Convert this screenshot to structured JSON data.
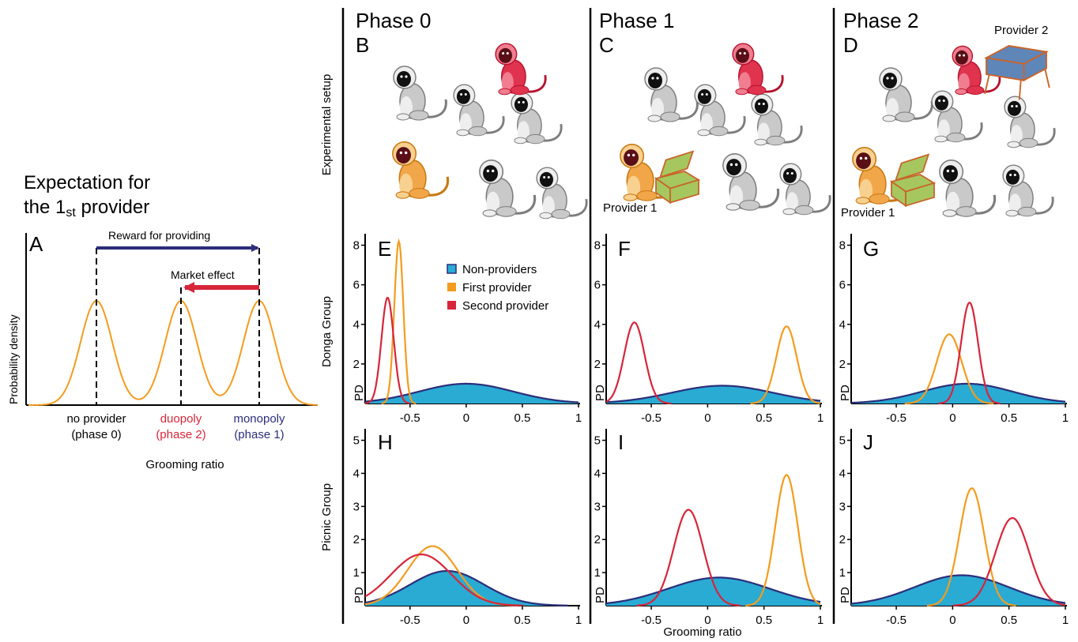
{
  "colors": {
    "nonprovider_fill": "#29abd4",
    "nonprovider_line": "#2b2e7a",
    "first_provider": "#f39c1f",
    "second_provider": "#d6263a",
    "reward_arrow": "#2b2e7a",
    "market_arrow": "#d6263a"
  },
  "panel_a": {
    "title_line1": "Expectation for",
    "title_line2_prefix": "the 1",
    "title_line2_sub": "st",
    "title_line2_suffix": " provider",
    "letter": "A",
    "ylabel": "Probability density",
    "xlabel": "Grooming ratio",
    "reward_label": "Reward for providing",
    "market_label": "Market effect",
    "categories": [
      {
        "name": "no provider",
        "phase": "(phase 0)",
        "color": "#000000"
      },
      {
        "name": "duopoly",
        "phase": "(phase 2)",
        "color": "#d6263a"
      },
      {
        "name": "monopoly",
        "phase": "(phase 1)",
        "color": "#2b2e7a"
      }
    ]
  },
  "phases": [
    {
      "title": "Phase 0",
      "letter": "B",
      "provider1_label": "",
      "provider2_label": ""
    },
    {
      "title": "Phase 1",
      "letter": "C",
      "provider1_label": "Provider 1",
      "provider2_label": ""
    },
    {
      "title": "Phase 2",
      "letter": "D",
      "provider1_label": "Provider 1",
      "provider2_label": "Provider 2"
    }
  ],
  "row_labels": {
    "setup": "Experimental setup",
    "donga": "Donga Group",
    "picnic": "Picnic Group"
  },
  "legend": {
    "nonproviders": "Non-providers",
    "first": "First provider",
    "second": "Second provider"
  },
  "shared_xlabel": "Grooming ratio",
  "pd_label": "PD",
  "chart_data": [
    {
      "type": "area",
      "panel": "E",
      "group": "Donga Group",
      "phase": "Phase 0",
      "xlim": [
        -0.9,
        1
      ],
      "ylim": [
        0,
        8.5
      ],
      "yticks": [
        2,
        4,
        6,
        8
      ],
      "xticks": [
        -0.5,
        0,
        0.5,
        1
      ],
      "series": [
        {
          "name": "Non-providers",
          "mean": 0.0,
          "sd": 0.42,
          "peak": 1.0
        },
        {
          "name": "First provider",
          "mean": -0.6,
          "sd": 0.04,
          "peak": 8.2
        },
        {
          "name": "Second provider",
          "mean": -0.7,
          "sd": 0.055,
          "peak": 5.35
        }
      ]
    },
    {
      "type": "area",
      "panel": "F",
      "group": "Donga Group",
      "phase": "Phase 1",
      "xlim": [
        -0.9,
        1
      ],
      "ylim": [
        0,
        8.5
      ],
      "yticks": [
        2,
        4,
        6,
        8
      ],
      "xticks": [
        -0.5,
        0,
        0.5,
        1
      ],
      "series": [
        {
          "name": "Non-providers",
          "mean": 0.13,
          "sd": 0.45,
          "peak": 0.9
        },
        {
          "name": "First provider",
          "mean": 0.7,
          "sd": 0.09,
          "peak": 3.9
        },
        {
          "name": "Second provider",
          "mean": -0.65,
          "sd": 0.09,
          "peak": 4.1
        }
      ]
    },
    {
      "type": "area",
      "panel": "G",
      "group": "Donga Group",
      "phase": "Phase 2",
      "xlim": [
        -0.9,
        1
      ],
      "ylim": [
        0,
        8.5
      ],
      "yticks": [
        2,
        4,
        6,
        8
      ],
      "xticks": [
        -0.5,
        0,
        0.5,
        1
      ],
      "series": [
        {
          "name": "Non-providers",
          "mean": 0.13,
          "sd": 0.4,
          "peak": 1.0
        },
        {
          "name": "First provider",
          "mean": -0.03,
          "sd": 0.11,
          "peak": 3.5
        },
        {
          "name": "Second provider",
          "mean": 0.15,
          "sd": 0.075,
          "peak": 5.1
        }
      ]
    },
    {
      "type": "area",
      "panel": "H",
      "group": "Picnic Group",
      "phase": "Phase 0",
      "xlim": [
        -0.9,
        1
      ],
      "ylim": [
        0,
        5.3
      ],
      "yticks": [
        1,
        2,
        3,
        4,
        5
      ],
      "xticks": [
        -0.5,
        0,
        0.5,
        1
      ],
      "series": [
        {
          "name": "Non-providers",
          "mean": -0.17,
          "sd": 0.33,
          "peak": 1.05
        },
        {
          "name": "First provider",
          "mean": -0.3,
          "sd": 0.22,
          "peak": 1.8
        },
        {
          "name": "Second provider",
          "mean": -0.4,
          "sd": 0.27,
          "peak": 1.55
        }
      ]
    },
    {
      "type": "area",
      "panel": "I",
      "group": "Picnic Group",
      "phase": "Phase 1",
      "xlim": [
        -0.9,
        1
      ],
      "ylim": [
        0,
        5.3
      ],
      "yticks": [
        1,
        2,
        3,
        4,
        5
      ],
      "xticks": [
        -0.5,
        0,
        0.5,
        1
      ],
      "series": [
        {
          "name": "Non-providers",
          "mean": 0.1,
          "sd": 0.45,
          "peak": 0.85
        },
        {
          "name": "First provider",
          "mean": 0.7,
          "sd": 0.1,
          "peak": 3.95
        },
        {
          "name": "Second provider",
          "mean": -0.17,
          "sd": 0.13,
          "peak": 2.9
        }
      ]
    },
    {
      "type": "area",
      "panel": "J",
      "group": "Picnic Group",
      "phase": "Phase 2",
      "xlim": [
        -0.9,
        1
      ],
      "ylim": [
        0,
        5.3
      ],
      "yticks": [
        1,
        2,
        3,
        4,
        5
      ],
      "xticks": [
        -0.5,
        0,
        0.5,
        1
      ],
      "series": [
        {
          "name": "Non-providers",
          "mean": 0.08,
          "sd": 0.42,
          "peak": 0.92
        },
        {
          "name": "First provider",
          "mean": 0.17,
          "sd": 0.11,
          "peak": 3.55
        },
        {
          "name": "Second provider",
          "mean": 0.53,
          "sd": 0.15,
          "peak": 2.65
        }
      ]
    }
  ]
}
